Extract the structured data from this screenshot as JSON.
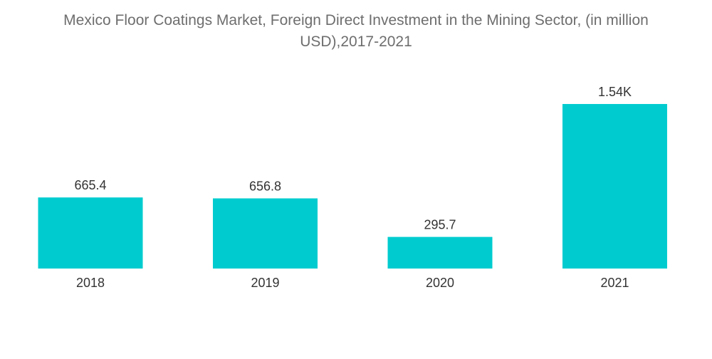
{
  "chart_data": {
    "type": "bar",
    "title_lines": [
      "Mexico Floor Coatings Market, Foreign Direct Investment in the Mining Sector, (in million",
      "USD),2017-2021"
    ],
    "categories": [
      "2018",
      "2019",
      "2020",
      "2021"
    ],
    "values": [
      665.4,
      656.8,
      295.7,
      1540
    ],
    "value_labels": [
      "665.4",
      "656.8",
      "295.7",
      "1.54K"
    ],
    "ylim": [
      0,
      1700
    ],
    "grid": false,
    "legend": "none",
    "colors": {
      "bar": "#00cccf",
      "label": "#333333",
      "title": "#6e6e6e"
    }
  }
}
